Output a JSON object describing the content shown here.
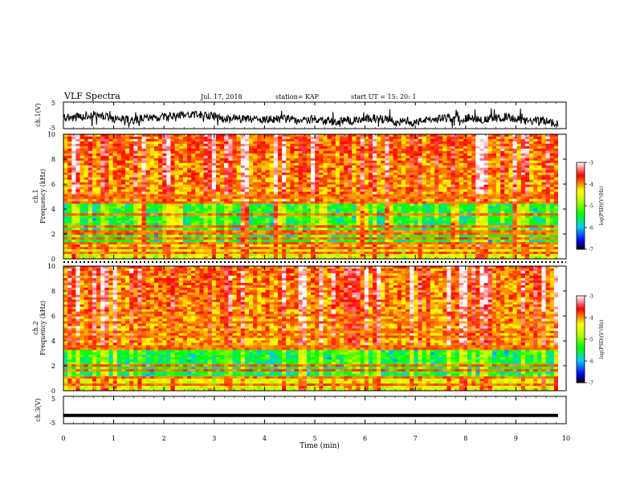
{
  "header": {
    "title": "VLF Spectra",
    "date": "Jul. 17, 2018",
    "station": "station= KAP",
    "start": "start  UT =   15: 20: 1"
  },
  "chart_data": [
    {
      "id": "ch1-waveform",
      "type": "line",
      "ylabel": "ch.1(V)",
      "yticks": [
        "5",
        "-5"
      ],
      "ylim": [
        -5,
        5
      ],
      "xlim": [
        0,
        10
      ],
      "x_unit": "min",
      "color": "#000000",
      "description_values": "dense noise-like waveform around about -1 V, amplitude about ±3 V"
    },
    {
      "id": "ch1-spectrogram",
      "type": "heatmap",
      "ylabel": "ch.1",
      "ylabel2": "Frequency (kHz)",
      "yticks": [
        "0",
        "2",
        "4",
        "6",
        "8",
        "10"
      ],
      "ylim": [
        0,
        10
      ],
      "xlim": [
        0,
        10
      ],
      "colorbar": {
        "label": "log(PSD)(V²/Hz)",
        "ticks": [
          "-3",
          "-4",
          "-5",
          "-6",
          "-7"
        ],
        "range": [
          -7,
          -3
        ],
        "colors": [
          "#000000",
          "#0000ff",
          "#00c8ff",
          "#00ff00",
          "#ffff00",
          "#ff0000",
          "#ffffff"
        ]
      },
      "lines_khz": [
        0.4,
        0.8,
        1.2,
        1.6,
        2.0,
        2.2,
        2.6,
        3.5,
        4.6,
        5.0
      ],
      "low_power_band_khz": [
        1.3,
        4.5
      ],
      "bright_gap_min": [
        1.55,
        2.25,
        3.6,
        4.25,
        5.15,
        5.95,
        6.45,
        7.8,
        9.0
      ]
    },
    {
      "id": "ch2-spectrogram",
      "type": "heatmap",
      "ylabel": "ch.2",
      "ylabel2": "Frequency (kHz)",
      "yticks": [
        "0",
        "2",
        "4",
        "6",
        "8",
        "10"
      ],
      "ylim": [
        0,
        10
      ],
      "xlim": [
        0,
        10
      ],
      "colorbar": {
        "label": "log(PSD)(V²/Hz)",
        "ticks": [
          "-3",
          "-4",
          "-5",
          "-6",
          "-7"
        ],
        "range": [
          -7,
          -3
        ]
      },
      "lines_khz": [
        0.5,
        1.1,
        1.6,
        2.0,
        3.3,
        3.6,
        4.4,
        4.8,
        5.5,
        6.1
      ],
      "low_power_band_khz": [
        1.0,
        3.5
      ],
      "bright_gap_min": []
    },
    {
      "id": "ch3-waveform",
      "type": "line",
      "ylabel": "ch.3(V)",
      "yticks": [
        "5",
        "-5"
      ],
      "ylim": [
        -5,
        5
      ],
      "xlim": [
        0,
        10
      ],
      "values_const": -2,
      "color": "#000000"
    }
  ],
  "xaxis": {
    "label": "Time (min)",
    "ticks": [
      "0",
      "1",
      "2",
      "3",
      "4",
      "5",
      "6",
      "7",
      "8",
      "9",
      "10"
    ]
  }
}
